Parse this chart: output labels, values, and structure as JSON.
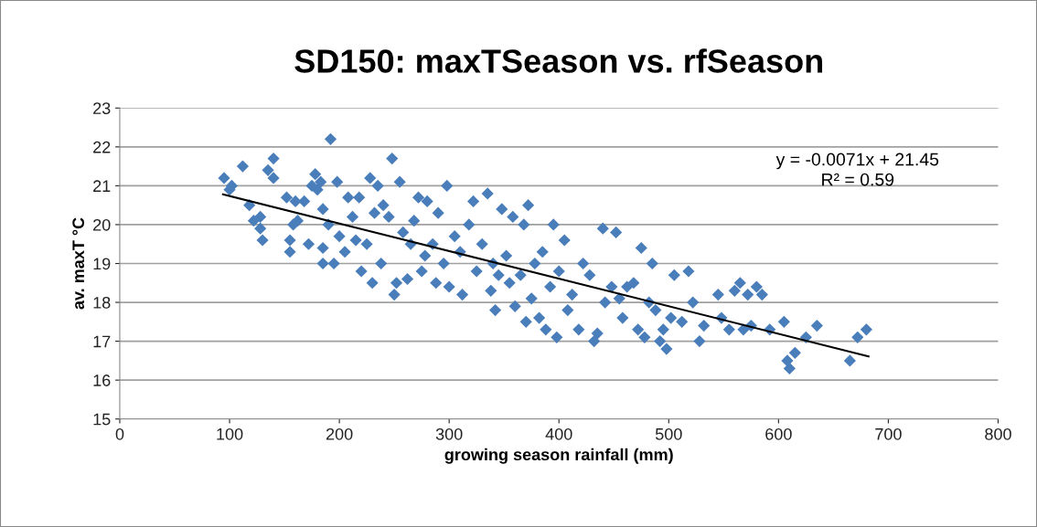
{
  "chart_data": {
    "type": "scatter",
    "title": "SD150: maxTSeason vs. rfSeason",
    "xlabel": "growing season rainfall (mm)",
    "ylabel": "av. maxT °C",
    "xlim": [
      0,
      800
    ],
    "xticks": [
      0,
      100,
      200,
      300,
      400,
      500,
      600,
      700,
      800
    ],
    "ylim": [
      15,
      23
    ],
    "yticks": [
      15,
      16,
      17,
      18,
      19,
      20,
      21,
      22,
      23
    ],
    "grid": "y",
    "annotations": [
      "y = -0.0071x + 21.45",
      "R² = 0.59"
    ],
    "series": [
      {
        "marker": "diamond",
        "color": "#4a7ebb",
        "x": [
          95,
          100,
          102,
          112,
          118,
          122,
          128,
          130,
          128,
          135,
          140,
          140,
          152,
          155,
          155,
          158,
          160,
          162,
          168,
          172,
          175,
          178,
          180,
          183,
          185,
          185,
          185,
          190,
          192,
          195,
          198,
          200,
          205,
          208,
          212,
          215,
          218,
          220,
          225,
          228,
          230,
          232,
          235,
          238,
          240,
          245,
          248,
          250,
          252,
          255,
          258,
          262,
          265,
          268,
          272,
          275,
          278,
          280,
          285,
          288,
          290,
          295,
          298,
          300,
          305,
          310,
          312,
          318,
          322,
          325,
          330,
          335,
          338,
          340,
          342,
          345,
          348,
          352,
          355,
          358,
          360,
          365,
          368,
          370,
          372,
          375,
          378,
          382,
          385,
          388,
          392,
          395,
          398,
          400,
          405,
          408,
          412,
          418,
          422,
          428,
          432,
          435,
          440,
          442,
          448,
          452,
          455,
          458,
          462,
          468,
          472,
          475,
          478,
          482,
          485,
          488,
          492,
          495,
          498,
          502,
          505,
          512,
          518,
          522,
          528,
          532,
          545,
          548,
          555,
          560,
          565,
          568,
          572,
          575,
          580,
          585,
          592,
          605,
          608,
          610,
          615,
          625,
          635,
          665,
          672,
          680
        ],
        "values": [
          21.2,
          20.9,
          21.0,
          21.5,
          20.5,
          20.1,
          20.2,
          19.6,
          19.9,
          21.4,
          21.7,
          21.2,
          20.7,
          19.6,
          19.3,
          20.0,
          20.6,
          20.1,
          20.6,
          19.5,
          21.0,
          21.3,
          20.9,
          21.1,
          20.4,
          19.4,
          19.0,
          20.0,
          22.2,
          19.0,
          21.1,
          19.7,
          19.3,
          20.7,
          20.2,
          19.6,
          20.7,
          18.8,
          19.5,
          21.2,
          18.5,
          20.3,
          21.0,
          19.0,
          20.5,
          20.2,
          21.7,
          18.2,
          18.5,
          21.1,
          19.8,
          18.6,
          19.5,
          20.1,
          20.7,
          18.8,
          19.2,
          20.6,
          19.5,
          18.5,
          20.3,
          19.0,
          21.0,
          18.4,
          19.7,
          19.3,
          18.2,
          20.0,
          20.6,
          18.8,
          19.5,
          20.8,
          18.3,
          19.0,
          17.8,
          18.7,
          20.4,
          19.2,
          18.5,
          20.2,
          17.9,
          18.7,
          20.0,
          17.5,
          20.5,
          18.1,
          19.0,
          17.6,
          19.3,
          17.3,
          18.4,
          20.0,
          17.1,
          18.8,
          19.6,
          17.8,
          18.2,
          17.3,
          19.0,
          18.7,
          17.0,
          17.2,
          19.9,
          18.0,
          18.4,
          19.8,
          18.1,
          17.6,
          18.4,
          18.5,
          17.3,
          19.4,
          17.1,
          18.0,
          19.0,
          17.8,
          17.0,
          17.3,
          16.8,
          17.6,
          18.7,
          17.5,
          18.8,
          18.0,
          17.0,
          17.4,
          18.2,
          17.6,
          17.3,
          18.3,
          18.5,
          17.3,
          18.2,
          17.4,
          18.4,
          18.2,
          17.3,
          17.5,
          16.5,
          16.3,
          16.7,
          17.1,
          17.4,
          16.5,
          17.1,
          17.3
        ]
      },
      {
        "type": "line",
        "marker": "none",
        "color": "#000000",
        "x": [
          94,
          682
        ],
        "values": [
          20.78,
          16.61
        ]
      }
    ]
  }
}
